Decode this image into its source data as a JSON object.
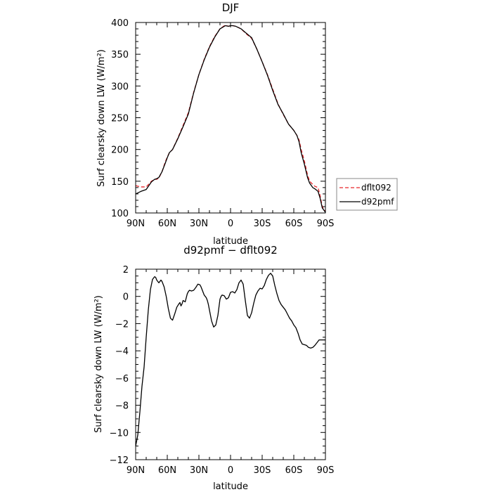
{
  "chart_data": [
    {
      "type": "line",
      "title": "DJF",
      "xlabel": "latitude",
      "ylabel": "Surf clearsky down LW (W/m²)",
      "xlim": [
        -90,
        90
      ],
      "ylim": [
        100,
        400
      ],
      "x_ticks": [
        -90,
        -60,
        -30,
        0,
        30,
        60,
        90
      ],
      "x_tick_labels": [
        "90N",
        "60N",
        "30N",
        "0",
        "30S",
        "60S",
        "90S"
      ],
      "y_ticks": [
        100,
        150,
        200,
        250,
        300,
        350,
        400
      ],
      "y_tick_labels": [
        "100",
        "150",
        "200",
        "250",
        "300",
        "350",
        "400"
      ],
      "legend_position": "right",
      "series": [
        {
          "name": "dflt092",
          "color": "#e8262b",
          "dash": "dashed",
          "x": [
            -90,
            -85,
            -80,
            -75,
            -72,
            -70,
            -68,
            -65,
            -62,
            -60,
            -58,
            -55,
            -50,
            -45,
            -40,
            -35,
            -30,
            -25,
            -20,
            -15,
            -10,
            -5,
            -2,
            0,
            2,
            5,
            10,
            15,
            20,
            25,
            30,
            35,
            40,
            45,
            50,
            55,
            60,
            63,
            65,
            67,
            70,
            73,
            75,
            78,
            80,
            83,
            85,
            87,
            90
          ],
          "y": [
            143,
            141,
            141,
            150,
            153,
            153,
            155,
            165,
            180,
            188,
            195,
            200,
            218,
            238,
            258,
            290,
            318,
            342,
            362,
            378,
            390,
            396,
            394,
            395,
            395,
            394,
            390,
            382,
            375,
            358,
            338,
            318,
            295,
            272,
            255,
            240,
            230,
            222,
            215,
            200,
            182,
            160,
            150,
            145,
            142,
            140,
            127,
            110,
            102
          ]
        },
        {
          "name": "d92pmf",
          "color": "#000000",
          "dash": "solid",
          "x": [
            -90,
            -85,
            -80,
            -75,
            -72,
            -70,
            -68,
            -65,
            -62,
            -60,
            -58,
            -55,
            -50,
            -45,
            -40,
            -35,
            -30,
            -25,
            -20,
            -15,
            -10,
            -5,
            -2,
            0,
            2,
            5,
            10,
            15,
            20,
            25,
            30,
            35,
            40,
            45,
            50,
            55,
            60,
            63,
            65,
            67,
            70,
            73,
            75,
            78,
            80,
            83,
            85,
            87,
            90
          ],
          "y": [
            130,
            134,
            137,
            149,
            153,
            154,
            156,
            165,
            178,
            187,
            195,
            200,
            217,
            236,
            256,
            289,
            318,
            341,
            361,
            377,
            390,
            395,
            394,
            395,
            395,
            394,
            390,
            383,
            376,
            358,
            338,
            317,
            293,
            271,
            256,
            240,
            230,
            222,
            212,
            195,
            177,
            156,
            147,
            140,
            138,
            134,
            123,
            108,
            101
          ]
        }
      ]
    },
    {
      "type": "line",
      "title": "d92pmf − dflt092",
      "xlabel": "latitude",
      "ylabel": "Surf clearsky down LW (W/m²)",
      "xlim": [
        -90,
        90
      ],
      "ylim": [
        -12,
        2
      ],
      "x_ticks": [
        -90,
        -60,
        -30,
        0,
        30,
        60,
        90
      ],
      "x_tick_labels": [
        "90N",
        "60N",
        "30N",
        "0",
        "30S",
        "60S",
        "90S"
      ],
      "y_ticks": [
        -12,
        -10,
        -8,
        -6,
        -4,
        -2,
        0,
        2
      ],
      "y_tick_labels": [
        "−12",
        "−10",
        "−8",
        "−6",
        "−4",
        "−2",
        "0",
        "2"
      ],
      "series": [
        {
          "color": "#000000",
          "dash": "solid",
          "x": [
            -90,
            -88,
            -86,
            -84,
            -82,
            -80,
            -78,
            -76,
            -74,
            -72,
            -71,
            -70,
            -68,
            -67,
            -66,
            -65,
            -63,
            -61,
            -59,
            -57,
            -55,
            -53,
            -51,
            -49,
            -48,
            -47,
            -46,
            -45,
            -44,
            -43,
            -41,
            -40,
            -39,
            -37,
            -35,
            -33,
            -31,
            -29,
            -28,
            -27,
            -26,
            -25,
            -24,
            -23,
            -22,
            -21,
            -20,
            -18,
            -16,
            -14,
            -12,
            -10,
            -9,
            -8,
            -6,
            -4,
            -2,
            0,
            2,
            4,
            6,
            8,
            10,
            12,
            14,
            16,
            18,
            20,
            22,
            24,
            26,
            28,
            30,
            32,
            34,
            36,
            38,
            40,
            42,
            44,
            46,
            48,
            50,
            52,
            54,
            56,
            58,
            60,
            62,
            64,
            66,
            68,
            70,
            72,
            74,
            76,
            78,
            80,
            82,
            84,
            86,
            88,
            90
          ],
          "y": [
            -11.0,
            -10.2,
            -8.5,
            -6.6,
            -5.2,
            -3.0,
            -1.0,
            0.5,
            1.25,
            1.45,
            1.4,
            1.2,
            1.0,
            1.1,
            1.2,
            1.1,
            0.7,
            0.0,
            -0.9,
            -1.6,
            -1.75,
            -1.3,
            -0.8,
            -0.55,
            -0.45,
            -0.7,
            -0.55,
            -0.3,
            -0.35,
            -0.4,
            0.2,
            0.35,
            0.45,
            0.4,
            0.45,
            0.65,
            0.9,
            0.85,
            0.7,
            0.5,
            0.3,
            0.1,
            0.0,
            -0.1,
            -0.3,
            -0.6,
            -1.0,
            -1.8,
            -2.25,
            -2.1,
            -1.4,
            -0.2,
            0.0,
            0.1,
            0.05,
            -0.2,
            -0.1,
            0.3,
            0.35,
            0.25,
            0.5,
            1.0,
            1.2,
            0.9,
            -0.3,
            -1.4,
            -1.6,
            -1.2,
            -0.5,
            0.1,
            0.4,
            0.6,
            0.55,
            0.8,
            1.25,
            1.55,
            1.7,
            1.5,
            0.8,
            0.2,
            -0.3,
            -0.6,
            -0.8,
            -1.0,
            -1.3,
            -1.6,
            -1.8,
            -2.1,
            -2.3,
            -2.7,
            -3.2,
            -3.5,
            -3.55,
            -3.6,
            -3.75,
            -3.8,
            -3.75,
            -3.6,
            -3.4,
            -3.2,
            -3.2,
            -3.2,
            -3.2
          ]
        }
      ]
    }
  ]
}
